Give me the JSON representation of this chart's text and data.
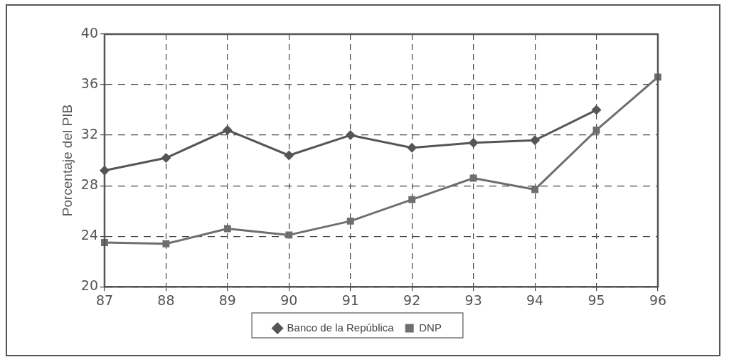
{
  "chart_data": {
    "type": "line",
    "ylabel": "Porcentaje del PIB",
    "categories": [
      "87",
      "88",
      "89",
      "90",
      "91",
      "92",
      "93",
      "94",
      "95",
      "96"
    ],
    "series": [
      {
        "name": "Banco de la República",
        "color": "#555555",
        "marker": "diamond",
        "values": [
          29.2,
          30.2,
          32.4,
          30.4,
          32.0,
          31.0,
          31.4,
          31.6,
          34.0,
          null
        ]
      },
      {
        "name": "DNP",
        "color": "#6e6e6e",
        "marker": "square",
        "values": [
          23.5,
          23.4,
          24.6,
          24.1,
          25.2,
          26.9,
          28.6,
          27.7,
          32.4,
          36.6
        ]
      }
    ],
    "ylim": [
      20,
      40
    ],
    "yticks": [
      20,
      24,
      28,
      32,
      36,
      40
    ],
    "grid": true,
    "line_style": "solid",
    "legend": "bottom"
  }
}
